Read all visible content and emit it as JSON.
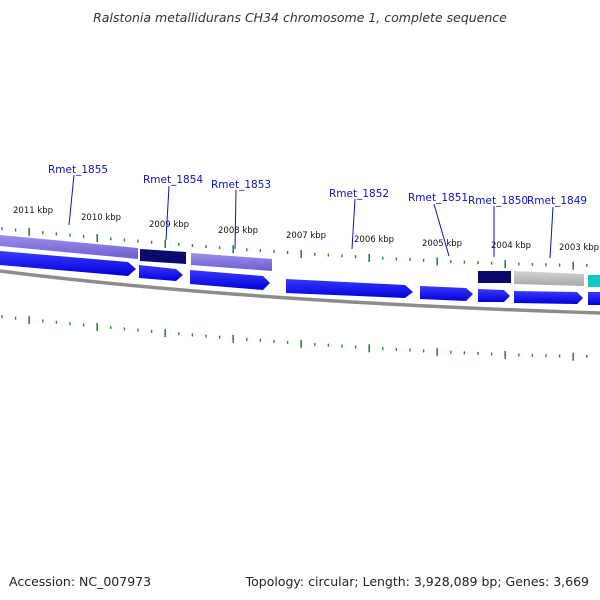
{
  "title": "Ralstonia metallidurans CH34 chromosome 1, complete sequence",
  "footer": {
    "accession": "Accession: NC_007973",
    "summary": "Topology: circular; Length: 3,928,089 bp; Genes: 3,669"
  },
  "kbp_labels": [
    "2011 kbp",
    "2010 kbp",
    "2009 kbp",
    "2008 kbp",
    "2007 kbp",
    "2006 kbp",
    "2005 kbp",
    "2004 kbp",
    "2003 kbp"
  ],
  "gene_labels": [
    "Rmet_1855",
    "Rmet_1854",
    "Rmet_1853",
    "Rmet_1852",
    "Rmet_1851",
    "Rmet_1850",
    "Rmet_1849"
  ],
  "colors": {
    "tick": "#2a8a2a",
    "gene_blue": "#1818ee",
    "gene_navy": "#0a0a6e",
    "gene_lavender": "#7b6fd6",
    "gene_gray": "#b8b8b8",
    "gene_cyan": "#10c8c8",
    "backbone": "#8c8c8c",
    "label_line": "#1010c0"
  }
}
